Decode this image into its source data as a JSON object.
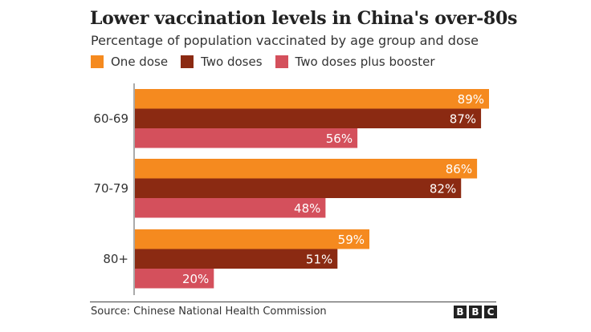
{
  "title": "Lower vaccination levels in China's over-80s",
  "subtitle": "Percentage of population vaccinated by age group and dose",
  "colors": {
    "one_dose": "#f58a1f",
    "two_doses": "#8b2a12",
    "booster": "#d4505c",
    "label_text": "#ffffff",
    "axis_text": "#333333"
  },
  "legend": [
    {
      "label": "One dose",
      "color": "#f58a1f"
    },
    {
      "label": "Two doses",
      "color": "#8b2a12"
    },
    {
      "label": "Two doses plus booster",
      "color": "#d4505c"
    }
  ],
  "source": "Source: Chinese National Health Commission",
  "brand": [
    "B",
    "B",
    "C"
  ],
  "chart_data": {
    "type": "bar",
    "orientation": "horizontal",
    "title": "Lower vaccination levels in China's over-80s",
    "subtitle": "Percentage of population vaccinated by age group and dose",
    "categories": [
      "60-69",
      "70-79",
      "80+"
    ],
    "series": [
      {
        "name": "One dose",
        "values": [
          89,
          86,
          59
        ],
        "labels": [
          "89%",
          "86%",
          "59%"
        ]
      },
      {
        "name": "Two doses",
        "values": [
          87,
          82,
          51
        ],
        "labels": [
          "87%",
          "82%",
          "51%"
        ]
      },
      {
        "name": "Two doses plus booster",
        "values": [
          56,
          48,
          20
        ],
        "labels": [
          "56%",
          "48%",
          "20%"
        ]
      }
    ],
    "xlim": [
      0,
      89
    ],
    "xlabel": "",
    "ylabel": "",
    "legend_position": "top-left",
    "grid": false
  }
}
